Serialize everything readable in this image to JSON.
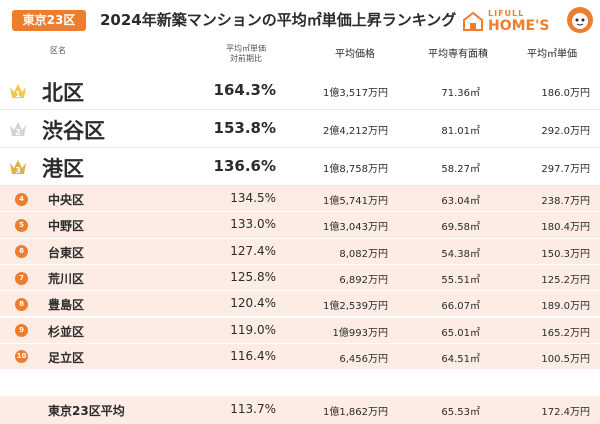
{
  "header": {
    "region_badge": "東京23区",
    "title": "2024年新築マンションの平均㎡単価上昇ランキング",
    "logo_small": "LIFULL",
    "logo_big": "HOME'S",
    "brand_color": "#ef7d2e"
  },
  "columns": {
    "name": "区名",
    "ratio_line1": "平均㎡単価",
    "ratio_line2": "対前期比",
    "price": "平均価格",
    "area": "平均専有面積",
    "unit_price": "平均㎡単価"
  },
  "rows": [
    {
      "rank": "1",
      "name": "北区",
      "ratio": "164.3%",
      "price": "1億3,517万円",
      "area": "71.36㎡",
      "unit_price": "186.0万円",
      "crown": "gold"
    },
    {
      "rank": "2",
      "name": "渋谷区",
      "ratio": "153.8%",
      "price": "2億4,212万円",
      "area": "81.01㎡",
      "unit_price": "292.0万円",
      "crown": "silver"
    },
    {
      "rank": "3",
      "name": "港区",
      "ratio": "136.6%",
      "price": "1億8,758万円",
      "area": "58.27㎡",
      "unit_price": "297.7万円",
      "crown": "bronze"
    },
    {
      "rank": "4",
      "name": "中央区",
      "ratio": "134.5%",
      "price": "1億5,741万円",
      "area": "63.04㎡",
      "unit_price": "238.7万円"
    },
    {
      "rank": "5",
      "name": "中野区",
      "ratio": "133.0%",
      "price": "1億3,043万円",
      "area": "69.58㎡",
      "unit_price": "180.4万円"
    },
    {
      "rank": "6",
      "name": "台東区",
      "ratio": "127.4%",
      "price": "8,082万円",
      "area": "54.38㎡",
      "unit_price": "150.3万円"
    },
    {
      "rank": "7",
      "name": "荒川区",
      "ratio": "125.8%",
      "price": "6,892万円",
      "area": "55.51㎡",
      "unit_price": "125.2万円"
    },
    {
      "rank": "8",
      "name": "豊島区",
      "ratio": "120.4%",
      "price": "1億2,539万円",
      "area": "66.07㎡",
      "unit_price": "189.0万円"
    },
    {
      "rank": "9",
      "name": "杉並区",
      "ratio": "119.0%",
      "price": "1億993万円",
      "area": "65.01㎡",
      "unit_price": "165.2万円"
    },
    {
      "rank": "10",
      "name": "足立区",
      "ratio": "116.4%",
      "price": "6,456万円",
      "area": "64.51㎡",
      "unit_price": "100.5万円"
    }
  ],
  "average": {
    "name": "東京23区平均",
    "ratio": "113.7%",
    "price": "1億1,862万円",
    "area": "65.53㎡",
    "unit_price": "172.4万円"
  },
  "crown_colors": {
    "gold": "#f2c84b",
    "silver": "#d3d3d3",
    "bronze": "#d9b24a"
  }
}
